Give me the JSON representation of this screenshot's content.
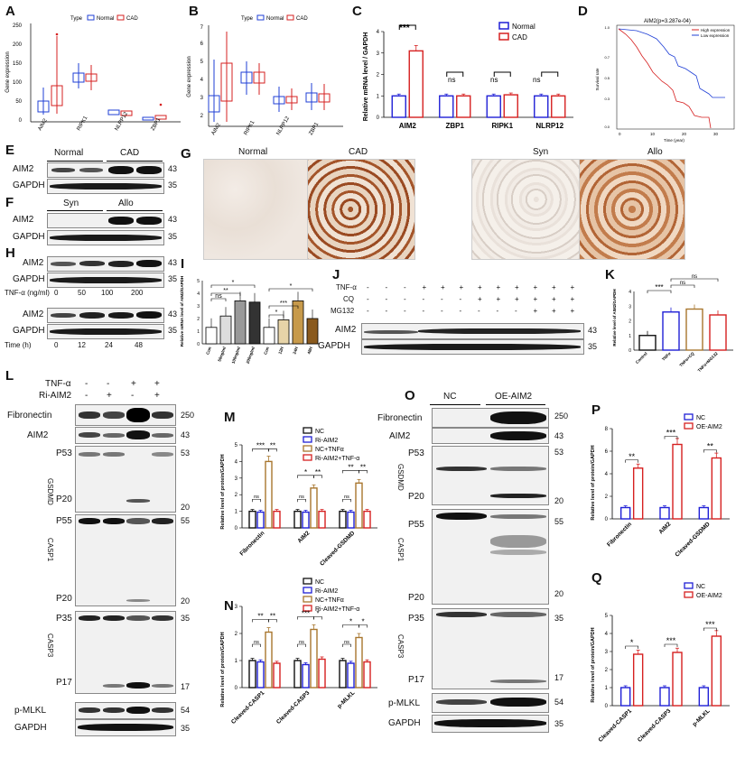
{
  "panels": {
    "A": "A",
    "B": "B",
    "C": "C",
    "D": "D",
    "E": "E",
    "F": "F",
    "G": "G",
    "H": "H",
    "I": "I",
    "J": "J",
    "K": "K",
    "L": "L",
    "M": "M",
    "N": "N",
    "O": "O",
    "P": "P",
    "Q": "Q"
  },
  "legend_type": {
    "type": "Type",
    "normal": "Normal",
    "cad": "CAD"
  },
  "boxplot": {
    "ylabel": "Gene expression",
    "genes": [
      "AIM2",
      "RIPK1",
      "NLRP12",
      "ZBP1"
    ],
    "A_yticks": [
      "0",
      "50",
      "100",
      "150",
      "200",
      "250"
    ],
    "B_yticks": [
      "2",
      "3",
      "4",
      "5",
      "6",
      "7"
    ]
  },
  "panelC": {
    "ylabel": "Relative mRNA level / GAPDH",
    "yticks": [
      "0",
      "1",
      "2",
      "3",
      "4"
    ],
    "legend": [
      "Normal",
      "CAD"
    ],
    "sig": [
      "***",
      "ns",
      "ns",
      "ns"
    ]
  },
  "panelD": {
    "title": "AIM2(p=3.287e-04)",
    "legend": [
      "High expression",
      "Low expression"
    ],
    "ylabel": "Survival rate",
    "xlabel": "Time (year)",
    "xticks": [
      "0",
      "10",
      "20",
      "30"
    ],
    "yticks": [
      "0.0",
      "0.1",
      "0.2",
      "0.3",
      "0.4",
      "0.5",
      "0.6",
      "0.7",
      "0.8",
      "0.9",
      "1.0"
    ]
  },
  "panelE": {
    "normal": "Normal",
    "cad": "CAD",
    "rows": [
      "AIM2",
      "GAPDH"
    ],
    "mw": [
      "43",
      "35"
    ]
  },
  "panelF": {
    "syn": "Syn",
    "allo": "Allo",
    "rows": [
      "AIM2",
      "GAPDH"
    ],
    "mw": [
      "43",
      "35"
    ]
  },
  "panelG": {
    "labels": [
      "Normal",
      "CAD",
      "Syn",
      "Allo"
    ]
  },
  "panelH": {
    "rows1": [
      "AIM2",
      "GAPDH"
    ],
    "rows2": [
      "AIM2",
      "GAPDH"
    ],
    "mw": [
      "43",
      "35"
    ],
    "tnf_label": "TNF-α (ng/ml)",
    "tnf_vals": [
      "0",
      "50",
      "100",
      "200"
    ],
    "time_label": "Time (h)",
    "time_vals": [
      "0",
      "12",
      "24",
      "48"
    ]
  },
  "panelI": {
    "ylabel": "Relative mRNA level of AIM2/GAPDH",
    "yticks": [
      "0",
      "1",
      "2",
      "3",
      "4",
      "5"
    ],
    "categories": [
      "Con",
      "50ng/ml",
      "100ng/ml",
      "200ng/ml",
      "Con",
      "12H",
      "24H",
      "48H"
    ],
    "sig": [
      "*",
      "ns",
      "**",
      "*",
      "***",
      "*"
    ]
  },
  "panelJ": {
    "rows": [
      "TNF-α",
      "CQ",
      "MG132"
    ],
    "tnf": [
      "-",
      "-",
      "-",
      "+",
      "+",
      "+",
      "+",
      "+",
      "+",
      "+",
      "+",
      "+"
    ],
    "cq": [
      "-",
      "-",
      "-",
      "-",
      "-",
      "-",
      "+",
      "+",
      "+",
      "+",
      "+",
      "+"
    ],
    "mg": [
      "-",
      "-",
      "-",
      "-",
      "-",
      "-",
      "-",
      "-",
      "-",
      "+",
      "+",
      "+"
    ],
    "blots": [
      "AIM2",
      "GAPDH"
    ],
    "mw": [
      "43",
      "35"
    ]
  },
  "panelK": {
    "ylabel": "Relative level of AIM2/GAPDH",
    "yticks": [
      "0",
      "1",
      "2",
      "3",
      "4"
    ],
    "categories": [
      "Control",
      "TNFα",
      "TNFα+CQ",
      "TNFα+MG132"
    ],
    "sig": [
      "***",
      "ns",
      "ns"
    ]
  },
  "panelL": {
    "tnf": "TNF-α",
    "ri": "Ri-AIM2",
    "tnf_vals": [
      "-",
      "-",
      "+",
      "+"
    ],
    "ri_vals": [
      "-",
      "+",
      "-",
      "+"
    ],
    "rows": {
      "fn": "Fibronectin",
      "aim2": "AIM2",
      "p53": "P53",
      "gsdmd": "GSDMD",
      "p20": "P20",
      "p55": "P55",
      "casp1": "CASP1",
      "p20b": "P20",
      "p35": "P35",
      "casp3": "CASP3",
      "p17": "P17",
      "pmlkl": "p-MLKL",
      "gapdh": "GAPDH"
    },
    "mw": {
      "fn": "250",
      "aim2": "43",
      "p53": "53",
      "p20": "20",
      "p55": "55",
      "p20b": "20",
      "p35": "35",
      "p17": "17",
      "pmlkl": "54",
      "gapdh": "35"
    }
  },
  "panelM": {
    "ylabel": "Relative level of protein/GAPDH",
    "yticks": [
      "0",
      "1",
      "2",
      "3",
      "4",
      "5"
    ],
    "legend": [
      "NC",
      "Ri-AIM2",
      "NC+TNFα",
      "Ri-AIM2+TNF-α"
    ],
    "groups": [
      "Fibronectin",
      "AIM2",
      "Cleaved-GSDMD"
    ],
    "sig": [
      "***",
      "**",
      "ns",
      "*",
      "**",
      "ns",
      "**",
      "**",
      "ns"
    ]
  },
  "panelN": {
    "ylabel": "Relative level of protein/GAPDH",
    "yticks": [
      "0",
      "1",
      "2",
      "3"
    ],
    "legend": [
      "NC",
      "Ri-AIM2",
      "NC+TNFα",
      "Ri-AIM2+TNF-α"
    ],
    "groups": [
      "Cleaved-CASP1",
      "Cleaved-CASP3",
      "p-MLKL"
    ],
    "sig": [
      "**",
      "**",
      "ns",
      "***",
      "*",
      "ns",
      "*",
      "*",
      "ns"
    ]
  },
  "panelO": {
    "nc": "NC",
    "oe": "OE-AIM2",
    "rows": {
      "fn": "Fibronectin",
      "aim2": "AIM2",
      "p53": "P53",
      "gsdmd": "GSDMD",
      "p20": "P20",
      "p55": "P55",
      "casp1": "CASP1",
      "p20b": "P20",
      "p35": "P35",
      "casp3": "CASP3",
      "p17": "P17",
      "pmlkl": "p-MLKL",
      "gapdh": "GAPDH"
    },
    "mw": {
      "fn": "250",
      "aim2": "43",
      "p53": "53",
      "p20": "20",
      "p55": "55",
      "p20b": "20",
      "p35": "35",
      "p17": "17",
      "pmlkl": "54",
      "gapdh": "35"
    }
  },
  "panelP": {
    "ylabel": "Relative level of protein/GAPDH",
    "yticks": [
      "0",
      "2",
      "4",
      "6",
      "8"
    ],
    "legend": [
      "NC",
      "OE-AIM2"
    ],
    "groups": [
      "Fibronectin",
      "AIM2",
      "Cleaved-GSDMD"
    ],
    "sig": [
      "**",
      "***",
      "**"
    ]
  },
  "panelQ": {
    "ylabel": "Relative level of protein/GAPDH",
    "yticks": [
      "0",
      "1",
      "2",
      "3",
      "4",
      "5"
    ],
    "legend": [
      "NC",
      "OE-AIM2"
    ],
    "groups": [
      "Cleaved-CASP1",
      "Cleaved-CASP3",
      "p-MLKL"
    ],
    "sig": [
      "*",
      "***",
      "***"
    ]
  },
  "chart_data": [
    {
      "id": "C",
      "type": "bar",
      "categories": [
        "AIM2",
        "ZBP1",
        "RIPK1",
        "NLRP12"
      ],
      "series": [
        {
          "name": "Normal",
          "values": [
            1.0,
            1.0,
            1.0,
            1.0
          ]
        },
        {
          "name": "CAD",
          "values": [
            3.1,
            1.0,
            1.05,
            1.0
          ]
        }
      ],
      "ylim": [
        0,
        4
      ],
      "colors": [
        "#1f1fd6",
        "#d62020"
      ]
    },
    {
      "id": "I",
      "type": "bar",
      "categories": [
        "Con",
        "50ng/ml",
        "100ng/ml",
        "200ng/ml",
        "Con",
        "12H",
        "24H",
        "48H"
      ],
      "values": [
        1.3,
        2.2,
        3.4,
        3.3,
        1.3,
        1.9,
        3.4,
        2.0
      ],
      "ylim": [
        0,
        5
      ]
    },
    {
      "id": "K",
      "type": "bar",
      "categories": [
        "Control",
        "TNFα",
        "TNFα+CQ",
        "TNFα+MG132"
      ],
      "values": [
        1.0,
        2.6,
        2.8,
        2.4
      ],
      "ylim": [
        0,
        4
      ]
    },
    {
      "id": "M",
      "type": "bar",
      "categories": [
        "Fibronectin",
        "AIM2",
        "Cleaved-GSDMD"
      ],
      "series": [
        {
          "name": "NC",
          "values": [
            1.0,
            1.0,
            1.0
          ]
        },
        {
          "name": "Ri-AIM2",
          "values": [
            0.95,
            0.95,
            0.95
          ]
        },
        {
          "name": "NC+TNFα",
          "values": [
            4.0,
            2.4,
            2.7
          ]
        },
        {
          "name": "Ri-AIM2+TNF-α",
          "values": [
            1.0,
            1.0,
            1.0
          ]
        }
      ],
      "ylim": [
        0,
        5
      ],
      "colors": [
        "#111111",
        "#1f1fd6",
        "#a8762e",
        "#d62020"
      ]
    },
    {
      "id": "N",
      "type": "bar",
      "categories": [
        "Cleaved-CASP1",
        "Cleaved-CASP3",
        "p-MLKL"
      ],
      "series": [
        {
          "name": "NC",
          "values": [
            1.0,
            1.0,
            1.0
          ]
        },
        {
          "name": "Ri-AIM2",
          "values": [
            0.95,
            0.85,
            0.9
          ]
        },
        {
          "name": "NC+TNFα",
          "values": [
            2.05,
            2.15,
            1.85
          ]
        },
        {
          "name": "Ri-AIM2+TNF-α",
          "values": [
            0.9,
            1.05,
            0.95
          ]
        }
      ],
      "ylim": [
        0,
        3
      ],
      "colors": [
        "#111111",
        "#1f1fd6",
        "#a8762e",
        "#d62020"
      ]
    },
    {
      "id": "P",
      "type": "bar",
      "categories": [
        "Fibronectin",
        "AIM2",
        "Cleaved-GSDMD"
      ],
      "series": [
        {
          "name": "NC",
          "values": [
            1.0,
            1.0,
            1.0
          ]
        },
        {
          "name": "OE-AIM2",
          "values": [
            4.5,
            6.6,
            5.4
          ]
        }
      ],
      "ylim": [
        0,
        8
      ],
      "colors": [
        "#1f1fd6",
        "#d62020"
      ]
    },
    {
      "id": "Q",
      "type": "bar",
      "categories": [
        "Cleaved-CASP1",
        "Cleaved-CASP3",
        "p-MLKL"
      ],
      "series": [
        {
          "name": "NC",
          "values": [
            1.0,
            1.0,
            1.0
          ]
        },
        {
          "name": "OE-AIM2",
          "values": [
            2.85,
            2.95,
            3.85
          ]
        }
      ],
      "ylim": [
        0,
        5
      ],
      "colors": [
        "#1f1fd6",
        "#d62020"
      ]
    }
  ]
}
